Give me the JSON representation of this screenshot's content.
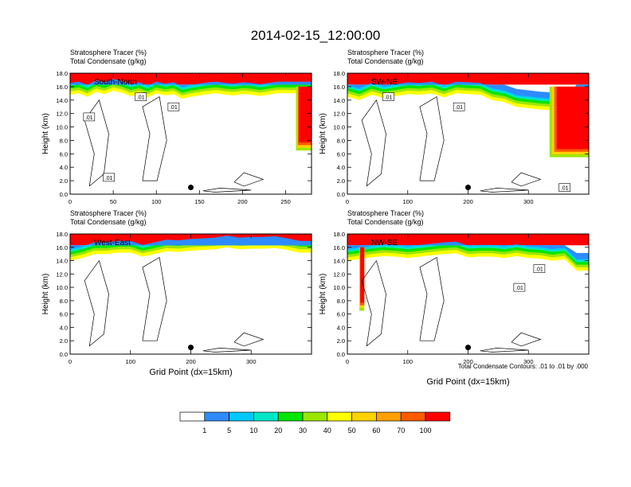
{
  "figure": {
    "title": "2014-02-15_12:00:00",
    "contour_note": "Total Condensate Contours: .01 to .01 by .000",
    "colorbar": {
      "levels": [
        "1",
        "5",
        "10",
        "20",
        "30",
        "40",
        "50",
        "60",
        "70",
        "100"
      ],
      "colors": [
        "#ffffff",
        "#2e8bff",
        "#00c8ff",
        "#00e6c8",
        "#00e600",
        "#9be600",
        "#ffff00",
        "#ffd200",
        "#ffa000",
        "#ff5a00",
        "#ff0000"
      ]
    }
  },
  "chart_data": [
    {
      "type": "heatmap",
      "panel_label": "South-North",
      "subtitle_line1": "Stratosphere Tracer   (%)",
      "subtitle_line2": "Total Condensate   (g/kg)",
      "xlabel": "",
      "ylabel": "Height (km)",
      "xlim": [
        0,
        280
      ],
      "ylim": [
        0,
        18
      ],
      "xticks": [
        0,
        50,
        100,
        150,
        200,
        250
      ],
      "yticks": [
        "0.0",
        "2.0",
        "4.0",
        "6.0",
        "8.0",
        "10.0",
        "12.0",
        "14.0",
        "16.0",
        "18.0"
      ],
      "tracer_base_km": [
        [
          0,
          14.8
        ],
        [
          10,
          15.0
        ],
        [
          20,
          14.5
        ],
        [
          30,
          15.2
        ],
        [
          40,
          14.9
        ],
        [
          50,
          15.4
        ],
        [
          60,
          15.1
        ],
        [
          70,
          14.6
        ],
        [
          80,
          14.9
        ],
        [
          90,
          14.4
        ],
        [
          100,
          15.0
        ],
        [
          110,
          14.7
        ],
        [
          120,
          14.9
        ],
        [
          130,
          14.2
        ],
        [
          140,
          14.5
        ],
        [
          150,
          14.7
        ],
        [
          160,
          14.9
        ],
        [
          170,
          15.0
        ],
        [
          180,
          14.8
        ],
        [
          190,
          14.7
        ],
        [
          200,
          14.9
        ],
        [
          210,
          14.8
        ],
        [
          220,
          14.6
        ],
        [
          230,
          14.8
        ],
        [
          240,
          15.0
        ],
        [
          250,
          15.0
        ],
        [
          260,
          15.0
        ],
        [
          270,
          15.0
        ],
        [
          280,
          15.0
        ]
      ],
      "tracer_intrusion": {
        "x_from": 262,
        "x_to": 280,
        "bottom_km": 6.5
      },
      "marker": {
        "x": 140,
        "y_km": 1.0
      },
      "contour_labels": [
        {
          "text": ".01",
          "x": 45,
          "y_km": 2.5
        },
        {
          "text": ".01",
          "x": 22,
          "y_km": 11.5
        },
        {
          "text": ".01",
          "x": 82,
          "y_km": 14.5
        },
        {
          "text": ".01",
          "x": 120,
          "y_km": 13.0
        }
      ]
    },
    {
      "type": "heatmap",
      "panel_label": "SW-NE",
      "subtitle_line1": "Stratosphere Tracer   (%)",
      "subtitle_line2": "Total Condensate   (g/kg)",
      "xlabel": "",
      "ylabel": "Height (km)",
      "xlim": [
        0,
        400
      ],
      "ylim": [
        0,
        18
      ],
      "xticks": [
        0,
        100,
        200,
        300
      ],
      "yticks": [
        "0.0",
        "2.0",
        "4.0",
        "6.0",
        "8.0",
        "10.0",
        "12.0",
        "14.0",
        "16.0",
        "18.0"
      ],
      "tracer_base_km": [
        [
          0,
          14.5
        ],
        [
          20,
          14.0
        ],
        [
          40,
          14.8
        ],
        [
          60,
          14.3
        ],
        [
          80,
          14.6
        ],
        [
          100,
          14.9
        ],
        [
          120,
          14.8
        ],
        [
          140,
          15.0
        ],
        [
          160,
          14.4
        ],
        [
          180,
          15.0
        ],
        [
          200,
          14.9
        ],
        [
          220,
          14.8
        ],
        [
          240,
          14.0
        ],
        [
          260,
          13.7
        ],
        [
          280,
          13.0
        ],
        [
          300,
          12.8
        ],
        [
          320,
          12.6
        ],
        [
          340,
          12.5
        ],
        [
          360,
          11.5
        ],
        [
          380,
          14.0
        ],
        [
          400,
          14.0
        ]
      ],
      "tracer_intrusion": {
        "x_from": 335,
        "x_to": 400,
        "bottom_km": 5.5
      },
      "marker": {
        "x": 200,
        "y_km": 1.0
      },
      "contour_labels": [
        {
          "text": ".01",
          "x": 68,
          "y_km": 14.5
        },
        {
          "text": ".01",
          "x": 185,
          "y_km": 13.0
        },
        {
          "text": ".01",
          "x": 360,
          "y_km": 1.0
        }
      ]
    },
    {
      "type": "heatmap",
      "panel_label": "West-East",
      "subtitle_line1": "Stratosphere Tracer   (%)",
      "subtitle_line2": "Total Condensate   (g/kg)",
      "xlabel": "Grid Point (dx=15km)",
      "ylabel": "Height (km)",
      "xlim": [
        0,
        400
      ],
      "ylim": [
        0,
        18
      ],
      "xticks": [
        0,
        100,
        200,
        300
      ],
      "yticks": [
        "0.0",
        "2.0",
        "4.0",
        "6.0",
        "8.0",
        "10.0",
        "12.0",
        "14.0",
        "16.0",
        "18.0"
      ],
      "tracer_base_km": [
        [
          0,
          14.0
        ],
        [
          20,
          14.4
        ],
        [
          40,
          15.0
        ],
        [
          60,
          15.0
        ],
        [
          80,
          15.2
        ],
        [
          100,
          15.2
        ],
        [
          120,
          14.6
        ],
        [
          140,
          15.0
        ],
        [
          160,
          15.4
        ],
        [
          180,
          15.3
        ],
        [
          200,
          15.5
        ],
        [
          220,
          15.6
        ],
        [
          240,
          15.7
        ],
        [
          260,
          16.0
        ],
        [
          280,
          15.7
        ],
        [
          300,
          15.8
        ],
        [
          320,
          15.8
        ],
        [
          340,
          15.9
        ],
        [
          360,
          15.6
        ],
        [
          380,
          15.2
        ],
        [
          400,
          15.2
        ]
      ],
      "tracer_intrusion": null,
      "marker": {
        "x": 200,
        "y_km": 1.0
      },
      "contour_labels": []
    },
    {
      "type": "heatmap",
      "panel_label": "NW-SE",
      "subtitle_line1": "Stratosphere Tracer   (%)",
      "subtitle_line2": "Total Condensate   (g/kg)",
      "xlabel": "Grid Point (dx=15km)",
      "ylabel": "Height (km)",
      "xlim": [
        0,
        400
      ],
      "ylim": [
        0,
        18
      ],
      "xticks": [
        0,
        100,
        200,
        300
      ],
      "yticks": [
        "0.0",
        "2.0",
        "4.0",
        "6.0",
        "8.0",
        "10.0",
        "12.0",
        "14.0",
        "16.0",
        "18.0"
      ],
      "tracer_base_km": [
        [
          0,
          14.0
        ],
        [
          40,
          14.5
        ],
        [
          60,
          14.7
        ],
        [
          80,
          14.6
        ],
        [
          100,
          14.4
        ],
        [
          120,
          14.6
        ],
        [
          140,
          14.8
        ],
        [
          160,
          15.0
        ],
        [
          180,
          15.1
        ],
        [
          200,
          14.5
        ],
        [
          220,
          14.6
        ],
        [
          240,
          14.6
        ],
        [
          260,
          14.4
        ],
        [
          280,
          14.7
        ],
        [
          300,
          14.4
        ],
        [
          320,
          14.3
        ],
        [
          340,
          14.0
        ],
        [
          360,
          14.2
        ],
        [
          380,
          12.5
        ],
        [
          400,
          12.5
        ]
      ],
      "tracer_intrusion": {
        "x_from": 20,
        "x_to": 28,
        "bottom_km": 6.5
      },
      "marker": {
        "x": 200,
        "y_km": 1.0
      },
      "contour_labels": [
        {
          "text": ".01",
          "x": 285,
          "y_km": 10.0
        },
        {
          "text": ".01",
          "x": 318,
          "y_km": 12.8
        }
      ]
    }
  ]
}
